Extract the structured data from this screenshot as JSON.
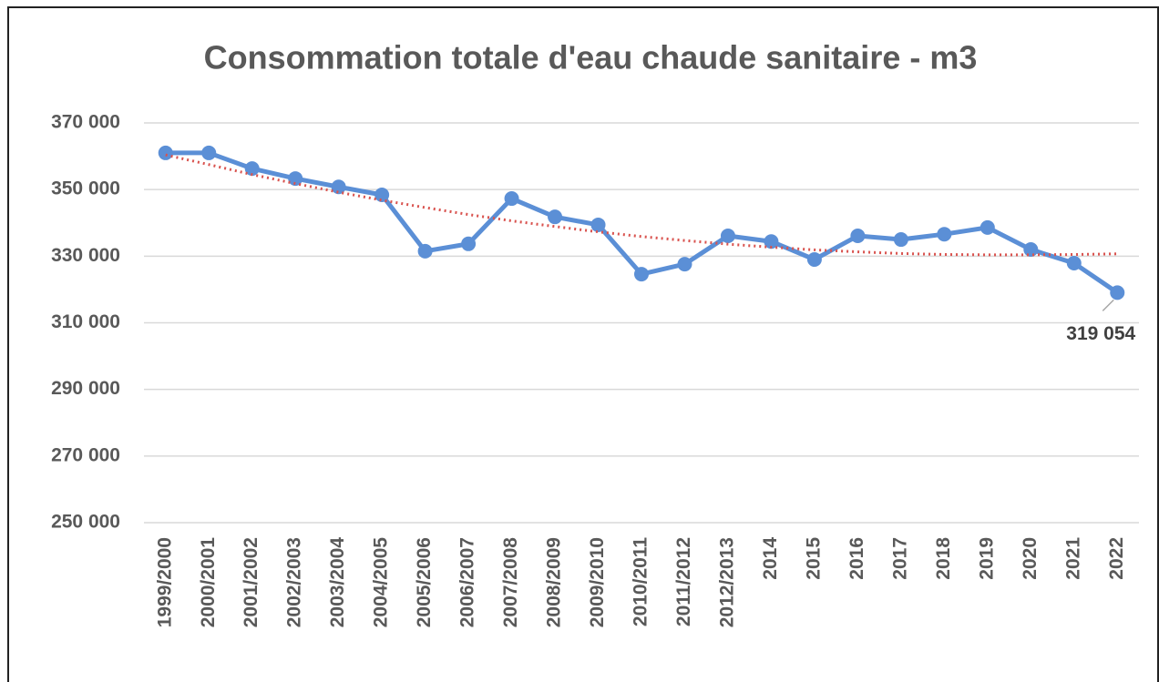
{
  "chart_data": {
    "type": "line",
    "title": "Consommation totale d'eau chaude sanitaire - m3",
    "categories": [
      "1999/2000",
      "2000/2001",
      "2001/2002",
      "2002/2003",
      "2003/2004",
      "2004/2005",
      "2005/2006",
      "2006/2007",
      "2007/2008",
      "2008/2009",
      "2009/2010",
      "2010/2011",
      "2011/2012",
      "2012/2013",
      "2014",
      "2015",
      "2016",
      "2017",
      "2018",
      "2019",
      "2020",
      "2021",
      "2022"
    ],
    "series": [
      {
        "color": "#5b8fd6",
        "style": "solid-markers",
        "values": [
          361000,
          361000,
          356300,
          353300,
          350800,
          348400,
          331500,
          333700,
          347300,
          341800,
          339400,
          324600,
          327600,
          336100,
          334400,
          329000,
          336100,
          335000,
          336600,
          338600,
          332000,
          327900,
          319054
        ],
        "value_labels": [
          null,
          null,
          null,
          null,
          null,
          null,
          null,
          null,
          null,
          null,
          null,
          null,
          null,
          null,
          null,
          null,
          null,
          null,
          null,
          null,
          null,
          null,
          "319 054"
        ]
      },
      {
        "color": "#d9534f",
        "style": "dotted",
        "values": [
          360400,
          357500,
          354500,
          351800,
          349200,
          346800,
          344600,
          342500,
          340600,
          338900,
          337300,
          335900,
          334700,
          333600,
          332700,
          331900,
          331300,
          330800,
          330500,
          330400,
          330400,
          330500,
          330700
        ]
      }
    ],
    "ylim": [
      250000,
      370000
    ],
    "yticks": [
      {
        "value": 250000,
        "label": "250 000"
      },
      {
        "value": 270000,
        "label": "270 000"
      },
      {
        "value": 290000,
        "label": "290 000"
      },
      {
        "value": 310000,
        "label": "310 000"
      },
      {
        "value": 330000,
        "label": "330 000"
      },
      {
        "value": 350000,
        "label": "350 000"
      },
      {
        "value": 370000,
        "label": "370 000"
      }
    ],
    "grid": true
  }
}
